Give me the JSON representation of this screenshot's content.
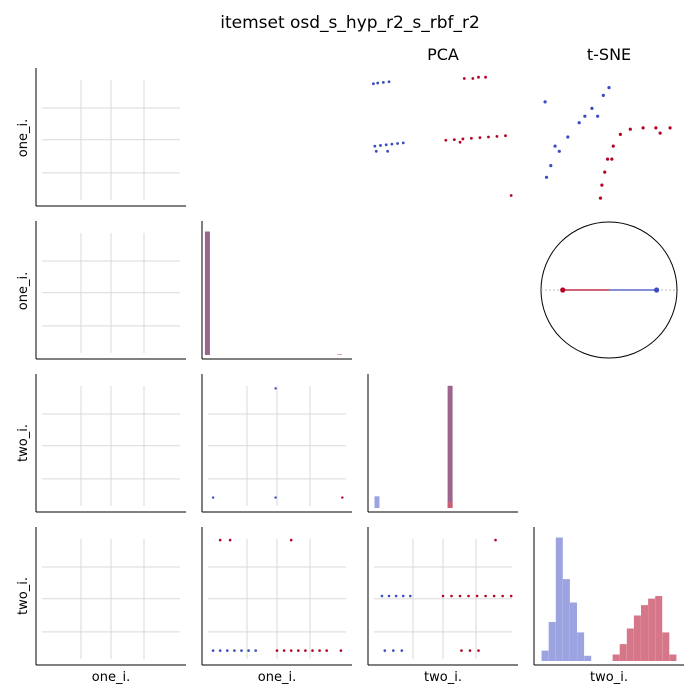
{
  "title": "itemset osd_s_hyp_r2_s_rbf_r2",
  "column_titles": [
    "PCA",
    "t-SNE"
  ],
  "row_labels": [
    "one_i.",
    "one_i.",
    "two_i.",
    "two_i."
  ],
  "col_labels": [
    "one_i.",
    "one_i.",
    "two_i.",
    "two_i."
  ],
  "colors": {
    "blue": "#3b4cc0",
    "red": "#b40426",
    "grid": "#d9d9d9",
    "hist_blue": "#8a94dc",
    "hist_red": "#cf5f74",
    "hist_overlap": "#8b4a7a"
  },
  "chart_data": [
    {
      "type": "scatter",
      "panel": "PCA",
      "grid": false,
      "xlim": [
        0,
        10
      ],
      "ylim": [
        0,
        10
      ],
      "series": [
        {
          "color": "blue",
          "points": [
            [
              0.1,
              9.1
            ],
            [
              0.4,
              9.15
            ],
            [
              0.8,
              9.2
            ],
            [
              1.2,
              9.25
            ],
            [
              0.2,
              4.3
            ],
            [
              0.6,
              4.35
            ],
            [
              1.0,
              4.4
            ],
            [
              1.4,
              4.45
            ],
            [
              1.8,
              4.5
            ],
            [
              2.2,
              4.55
            ],
            [
              0.3,
              3.9
            ],
            [
              1.1,
              3.9
            ]
          ]
        },
        {
          "color": "red",
          "points": [
            [
              5.2,
              4.75
            ],
            [
              5.8,
              4.8
            ],
            [
              6.4,
              4.85
            ],
            [
              7.0,
              4.9
            ],
            [
              7.6,
              4.95
            ],
            [
              8.2,
              5.0
            ],
            [
              8.8,
              5.05
            ],
            [
              9.4,
              5.1
            ],
            [
              6.2,
              4.6
            ],
            [
              6.5,
              9.5
            ],
            [
              7.1,
              9.5
            ],
            [
              7.5,
              9.6
            ],
            [
              8.0,
              9.6
            ],
            [
              9.8,
              0.5
            ]
          ]
        }
      ]
    },
    {
      "type": "scatter",
      "panel": "t-SNE",
      "grid": false,
      "xlim": [
        0,
        10
      ],
      "ylim": [
        0,
        10
      ],
      "series": [
        {
          "color": "blue",
          "points": [
            [
              0.5,
              7.7
            ],
            [
              0.6,
              1.9
            ],
            [
              0.9,
              2.8
            ],
            [
              1.5,
              3.9
            ],
            [
              2.1,
              5.0
            ],
            [
              2.9,
              6.1
            ],
            [
              3.8,
              7.2
            ],
            [
              4.6,
              8.2
            ],
            [
              5.0,
              8.8
            ],
            [
              1.2,
              4.3
            ],
            [
              3.3,
              6.6
            ],
            [
              4.2,
              6.6
            ]
          ]
        },
        {
          "color": "red",
          "points": [
            [
              4.4,
              0.3
            ],
            [
              4.5,
              1.3
            ],
            [
              4.7,
              2.3
            ],
            [
              4.9,
              3.3
            ],
            [
              5.3,
              4.3
            ],
            [
              5.8,
              5.2
            ],
            [
              6.5,
              5.6
            ],
            [
              7.4,
              5.7
            ],
            [
              8.3,
              5.7
            ],
            [
              9.3,
              5.7
            ],
            [
              5.2,
              3.3
            ],
            [
              8.6,
              5.3
            ]
          ]
        }
      ]
    },
    {
      "type": "scatter",
      "panel": "polar",
      "grid": false,
      "xlim": [
        -1,
        1
      ],
      "ylim": [
        -1,
        1
      ],
      "series": [
        {
          "color": "blue",
          "points": [
            [
              0.7,
              0.0
            ]
          ]
        },
        {
          "color": "red",
          "points": [
            [
              -0.68,
              0.0
            ]
          ]
        }
      ]
    },
    {
      "type": "bar",
      "panel": "one_i. vs one_i.",
      "xlim": [
        0,
        10
      ],
      "ylim": [
        0,
        10
      ],
      "series": [
        {
          "color": "hist_overlap",
          "values": [
            9.5
          ],
          "x": [
            0.1
          ]
        },
        {
          "color": "hist_red",
          "values": [
            0.05
          ],
          "x": [
            9.4
          ]
        }
      ]
    },
    {
      "type": "scatter",
      "panel": "two_i. vs one_i.",
      "grid": true,
      "xlim": [
        0,
        10
      ],
      "ylim": [
        0,
        10
      ],
      "series": [
        {
          "color": "blue",
          "points": [
            [
              0.5,
              0.8
            ],
            [
              4.9,
              9.2
            ],
            [
              4.9,
              0.8
            ]
          ]
        },
        {
          "color": "red",
          "points": [
            [
              9.6,
              0.8
            ]
          ]
        }
      ]
    },
    {
      "type": "bar",
      "panel": "two_i. vs two_i.",
      "xlim": [
        0,
        10
      ],
      "ylim": [
        0,
        10
      ],
      "series": [
        {
          "color": "hist_blue",
          "values": [
            0.9
          ],
          "x": [
            0.35
          ]
        },
        {
          "color": "hist_overlap",
          "values": [
            9.4
          ],
          "x": [
            5.5
          ]
        },
        {
          "color": "hist_red",
          "values": [
            0.5
          ],
          "x": [
            5.5
          ]
        }
      ]
    },
    {
      "type": "scatter",
      "panel": "two_i. row 4 vs one_i.",
      "grid": true,
      "xlim": [
        0,
        10
      ],
      "ylim": [
        0,
        10
      ],
      "series": [
        {
          "color": "blue",
          "points": [
            [
              0.5,
              0.8
            ],
            [
              1.0,
              0.8
            ],
            [
              1.5,
              0.8
            ],
            [
              2.0,
              0.8
            ],
            [
              2.5,
              0.8
            ],
            [
              3.0,
              0.8
            ],
            [
              3.5,
              0.8
            ]
          ]
        },
        {
          "color": "red",
          "points": [
            [
              5.0,
              0.8
            ],
            [
              5.5,
              0.8
            ],
            [
              6.0,
              0.8
            ],
            [
              6.5,
              0.8
            ],
            [
              7.0,
              0.8
            ],
            [
              7.5,
              0.8
            ],
            [
              8.0,
              0.8
            ],
            [
              8.5,
              0.8
            ],
            [
              9.5,
              0.8
            ],
            [
              1.0,
              9.3
            ],
            [
              1.7,
              9.3
            ],
            [
              6.0,
              9.3
            ]
          ]
        }
      ]
    },
    {
      "type": "scatter",
      "panel": "two_i. row 4 vs two_i.",
      "grid": true,
      "xlim": [
        0,
        10
      ],
      "ylim": [
        0,
        10
      ],
      "series": [
        {
          "color": "blue",
          "points": [
            [
              0.7,
              5.0
            ],
            [
              1.2,
              5.0
            ],
            [
              1.7,
              5.0
            ],
            [
              2.2,
              5.0
            ],
            [
              2.7,
              5.0
            ],
            [
              0.9,
              0.8
            ],
            [
              1.5,
              0.8
            ],
            [
              2.1,
              0.8
            ]
          ]
        },
        {
          "color": "red",
          "points": [
            [
              5.0,
              5.0
            ],
            [
              5.6,
              5.0
            ],
            [
              6.2,
              5.0
            ],
            [
              6.8,
              5.0
            ],
            [
              7.4,
              5.0
            ],
            [
              8.0,
              5.0
            ],
            [
              8.6,
              5.0
            ],
            [
              9.2,
              5.0
            ],
            [
              9.8,
              5.0
            ],
            [
              6.3,
              0.8
            ],
            [
              6.9,
              0.8
            ],
            [
              7.5,
              0.8
            ],
            [
              8.7,
              9.3
            ]
          ]
        }
      ]
    },
    {
      "type": "bar",
      "panel": "two_i. histogram",
      "xlim": [
        0,
        10
      ],
      "ylim": [
        0,
        10
      ],
      "series": [
        {
          "color": "hist_blue",
          "x": [
            0.5,
            1.0,
            1.5,
            2.0,
            2.5,
            3.0,
            3.5
          ],
          "values": [
            0.8,
            3.0,
            9.5,
            6.3,
            4.5,
            2.2,
            0.4
          ]
        },
        {
          "color": "hist_red",
          "x": [
            5.5,
            6.0,
            6.5,
            7.0,
            7.5,
            8.0,
            8.5,
            9.0,
            9.5
          ],
          "values": [
            0.5,
            1.3,
            2.5,
            3.5,
            4.3,
            4.8,
            5.0,
            2.2,
            0.5
          ]
        }
      ]
    }
  ]
}
